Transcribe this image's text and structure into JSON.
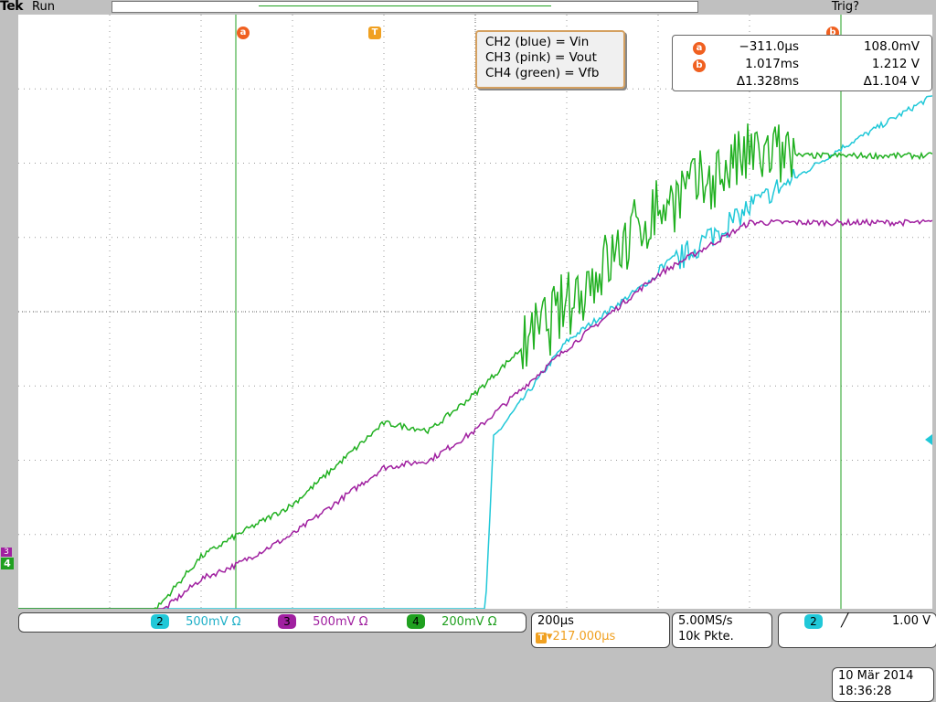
{
  "header": {
    "brand": "Tek",
    "status": "Run",
    "trigger_status": "Trig?",
    "trigger_marker": "T",
    "cursor_a_marker": "a",
    "cursor_b_marker": "b"
  },
  "annotation": {
    "line1": "CH2 (blue) = Vin",
    "line2": "CH3 (pink) = Vout",
    "line3": "CH4 (green) = Vfb"
  },
  "cursors": {
    "a_time": "−311.0µs",
    "a_value": "108.0mV",
    "b_time": "1.017ms",
    "b_value": "1.212 V",
    "delta_time": "Δ1.328ms",
    "delta_value": "Δ1.104 V"
  },
  "channels": [
    {
      "num": "2",
      "scale": "500mV Ω",
      "color": "#20c8d8"
    },
    {
      "num": "3",
      "scale": "500mV Ω",
      "color": "#a020a0"
    },
    {
      "num": "4",
      "scale": "200mV Ω",
      "color": "#20a820"
    }
  ],
  "timebase": {
    "per_div": "200µs",
    "trigger_pos": "▾217.000µs",
    "trigger_icon": "T"
  },
  "acquisition": {
    "rate": "5.00MS/s",
    "record": "10k Pkte."
  },
  "trigger": {
    "source": "2",
    "slope_icon": "rising-edge",
    "level": "1.00 V"
  },
  "datetime": {
    "date": "10 Mär  2014",
    "time": "18:36:28"
  },
  "ground_markers": {
    "ch3": "3",
    "ch4": "4"
  },
  "colors": {
    "ch2": "#20c8d8",
    "ch3": "#a020a0",
    "ch4": "#20b020",
    "cursor_line": "#20a020",
    "trigger_orange": "#f0a020"
  },
  "chart_data": {
    "type": "line",
    "x_unit": "div",
    "grid": true,
    "divisions": {
      "x": 10,
      "y": 8
    },
    "series": [
      {
        "name": "CH2 (blue) = Vin",
        "x": [
          0,
          5.1,
          5.2,
          6,
          7,
          8,
          9,
          10
        ],
        "y": [
          -4.3,
          -4.3,
          -1.7,
          -0.4,
          0.5,
          1.4,
          2.2,
          2.9
        ]
      },
      {
        "name": "CH3 (pink) = Vout",
        "x": [
          0,
          1.3,
          2.0,
          2.4,
          3.0,
          4.0,
          4.5,
          5.0,
          6.0,
          7.0,
          8.0,
          9.0,
          10
        ],
        "y": [
          -4.3,
          -4.3,
          -3.6,
          -3.4,
          -3.0,
          -2.1,
          -2.0,
          -1.6,
          -0.5,
          0.5,
          1.2,
          1.2,
          1.2
        ]
      },
      {
        "name": "CH4 (green) = Vfb",
        "x": [
          0,
          1.3,
          2.0,
          2.4,
          3.0,
          4.0,
          4.5,
          5.0,
          6.0,
          7.0,
          8.0,
          9.0,
          10
        ],
        "y": [
          -4.3,
          -4.3,
          -3.3,
          -3.0,
          -2.6,
          -1.5,
          -1.6,
          -1.1,
          0.1,
          1.4,
          2.1,
          2.1,
          2.1
        ]
      }
    ]
  }
}
